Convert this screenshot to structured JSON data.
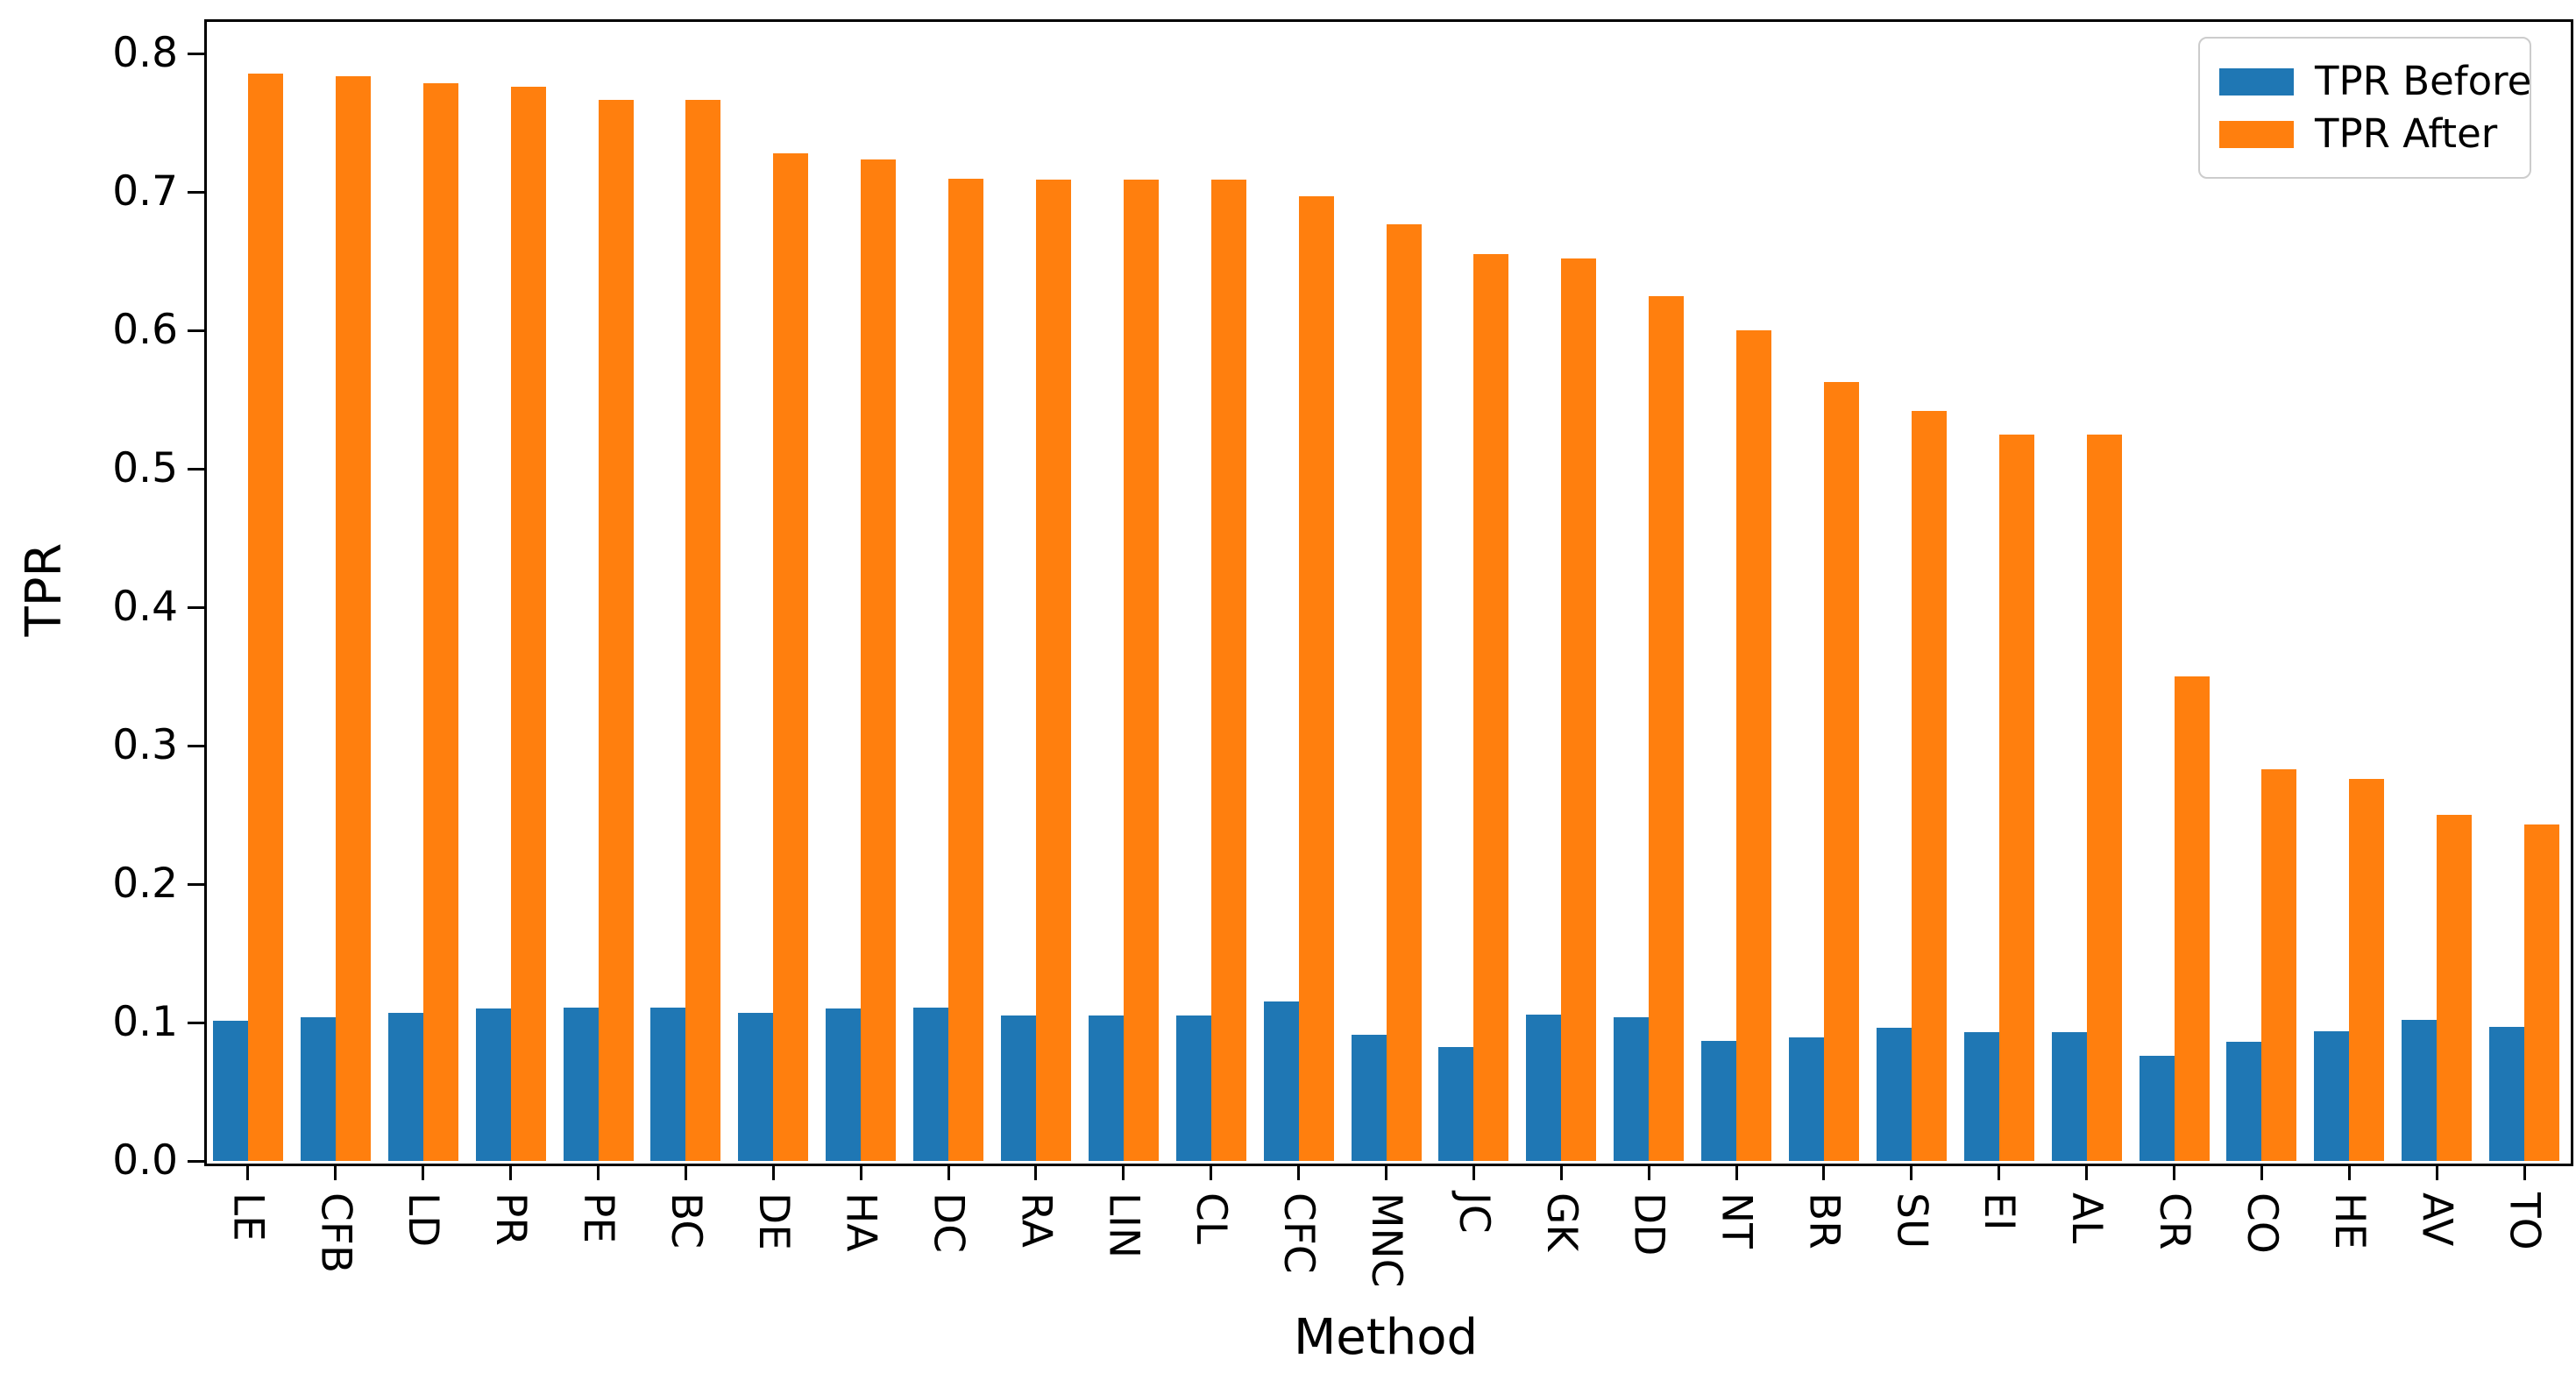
{
  "chart_data": {
    "type": "bar",
    "title": "",
    "xlabel": "Method",
    "ylabel": "TPR",
    "categories": [
      "LE",
      "CFB",
      "LD",
      "PR",
      "PE",
      "BC",
      "DE",
      "HA",
      "DC",
      "RA",
      "LIN",
      "CL",
      "CFC",
      "MNC",
      "JC",
      "GK",
      "DD",
      "NT",
      "BR",
      "SU",
      "EI",
      "AL",
      "CR",
      "CO",
      "HE",
      "AV",
      "TO"
    ],
    "series": [
      {
        "name": "TPR Before",
        "color": "#1f77b4",
        "values": [
          0.101,
          0.104,
          0.107,
          0.11,
          0.111,
          0.111,
          0.107,
          0.11,
          0.111,
          0.105,
          0.105,
          0.105,
          0.115,
          0.091,
          0.082,
          0.106,
          0.104,
          0.087,
          0.089,
          0.096,
          0.093,
          0.093,
          0.076,
          0.086,
          0.094,
          0.102,
          0.097
        ]
      },
      {
        "name": "TPR After",
        "color": "#ff7f0e",
        "values": [
          0.786,
          0.784,
          0.779,
          0.776,
          0.767,
          0.767,
          0.728,
          0.724,
          0.71,
          0.709,
          0.709,
          0.709,
          0.697,
          0.677,
          0.655,
          0.652,
          0.625,
          0.6,
          0.563,
          0.542,
          0.525,
          0.525,
          0.35,
          0.283,
          0.276,
          0.25,
          0.243
        ]
      }
    ],
    "ylim": [
      0,
      0.825
    ],
    "yticks": [
      0.0,
      0.1,
      0.2,
      0.3,
      0.4,
      0.5,
      0.6,
      0.7,
      0.8
    ],
    "ytick_format_decimals": 1,
    "grid": false,
    "legend_position": "upper right",
    "xtick_rotation": 90,
    "bar_color_before": "#1f77b4",
    "bar_color_after": "#ff7f0e"
  }
}
